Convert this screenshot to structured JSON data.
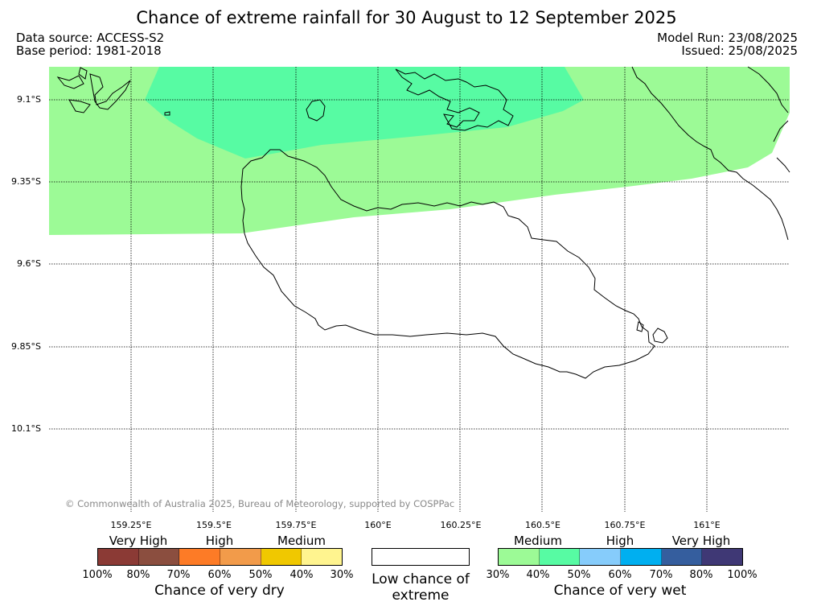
{
  "header": {
    "title": "Chance of extreme rainfall for 30 August to 12 September 2025",
    "data_source": "Data source: ACCESS-S2",
    "base_period": "Base period: 1981-2018",
    "model_run": "Model Run: 23/08/2025",
    "issued": "Issued: 25/08/2025"
  },
  "map": {
    "lat_labels": [
      "9.1°S",
      "9.35°S",
      "9.6°S",
      "9.85°S",
      "10.1°S"
    ],
    "lon_labels": [
      "159.25°E",
      "159.5°E",
      "159.75°E",
      "160°E",
      "160.25°E",
      "160.5°E",
      "160.75°E",
      "161°E"
    ],
    "copyright": "© Commonwealth of Australia 2025, Bureau of Meteorology, supported by COSPPac",
    "zones": [
      {
        "category": "Medium",
        "chance": "30%-40%",
        "color": "#9cfa96"
      },
      {
        "category": "Medium",
        "chance": "40%-50%",
        "color": "#57fba3"
      }
    ]
  },
  "legend": {
    "dry": {
      "categories": [
        "Very High",
        "High",
        "Medium"
      ],
      "colors": [
        "#8b3a35",
        "#8b4e3f",
        "#fd7b26",
        "#f29b4a",
        "#f0c800",
        "#fff48f"
      ],
      "ticks": [
        "100%",
        "80%",
        "70%",
        "60%",
        "50%",
        "40%",
        "30%"
      ],
      "caption": "Chance of very dry"
    },
    "low": {
      "caption": "Low chance of extreme",
      "color": "#ffffff"
    },
    "wet": {
      "categories": [
        "Medium",
        "High",
        "Very High"
      ],
      "colors": [
        "#9cfa96",
        "#57fba3",
        "#86ccfb",
        "#00aff0",
        "#355e9e",
        "#3f3875"
      ],
      "ticks": [
        "30%",
        "40%",
        "50%",
        "60%",
        "70%",
        "80%",
        "100%"
      ],
      "caption": "Chance of very wet"
    }
  }
}
